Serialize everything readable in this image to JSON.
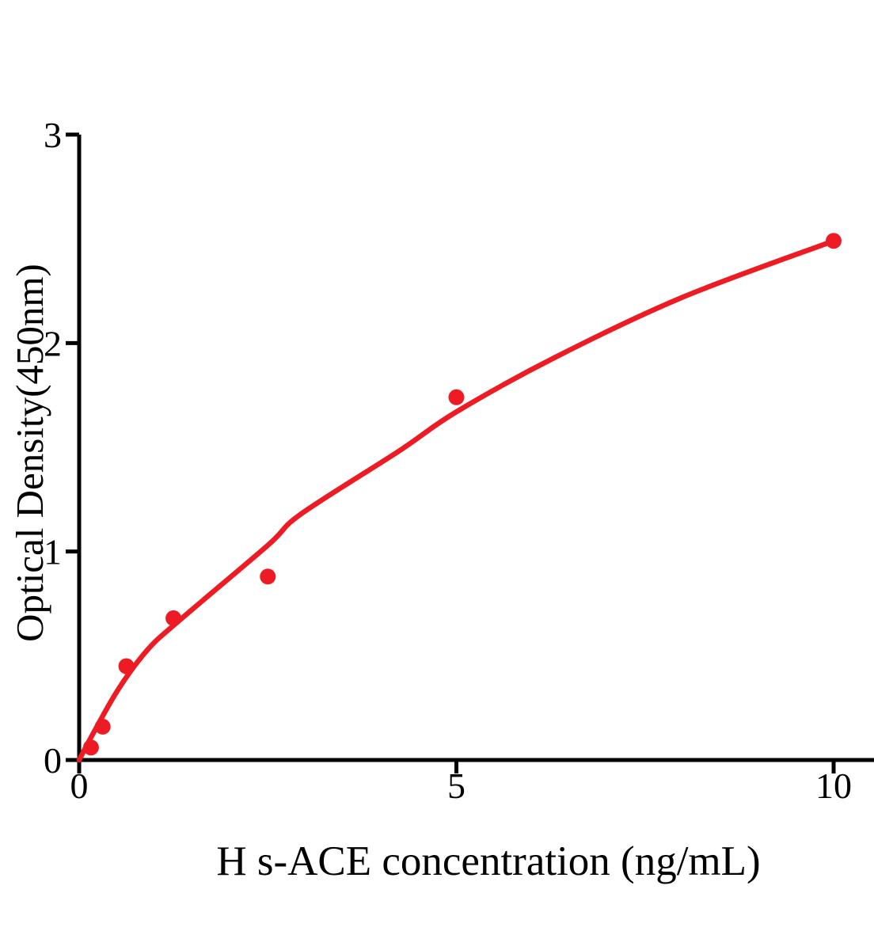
{
  "chart_data": {
    "type": "scatter",
    "title": "",
    "xlabel": "H s-ACE concentration (ng/mL)",
    "ylabel": "Optical Density(450nm)",
    "xlim": [
      0,
      10.5
    ],
    "ylim": [
      0,
      3
    ],
    "xticks": [
      "0",
      "5",
      "10"
    ],
    "xtick_values": [
      0,
      5,
      10
    ],
    "yticks": [
      "0",
      "1",
      "2",
      "3"
    ],
    "ytick_values": [
      0,
      1,
      2,
      3
    ],
    "grid": false,
    "legend_position": "none",
    "point_color": "#ED1C24",
    "line_color": "#ED1C24",
    "axis_color": "#000000",
    "series": [
      {
        "name": "standard points",
        "type": "scatter",
        "x": [
          0.156,
          0.312,
          0.625,
          1.25,
          2.5,
          5,
          10
        ],
        "y": [
          0.06,
          0.16,
          0.45,
          0.68,
          0.88,
          1.74,
          2.49
        ]
      },
      {
        "name": "fitted curve",
        "type": "line",
        "x": [
          0,
          0.16,
          0.52,
          0.91,
          1.33,
          2.5,
          2.94,
          4.23,
          5,
          6.3,
          8,
          10
        ],
        "y": [
          0,
          0.11,
          0.34,
          0.53,
          0.67,
          1.03,
          1.18,
          1.48,
          1.67,
          1.93,
          2.22,
          2.49
        ]
      }
    ]
  }
}
